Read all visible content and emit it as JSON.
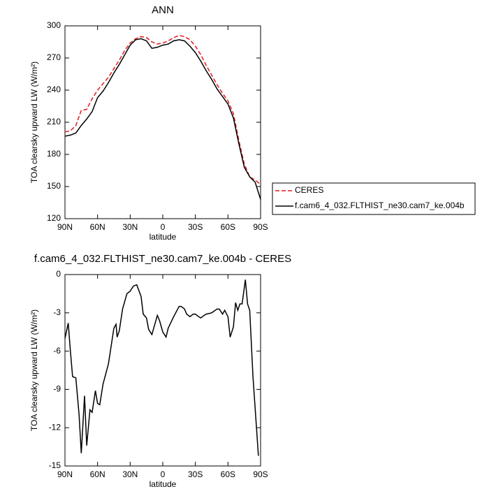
{
  "chart_data": [
    {
      "type": "line",
      "title": "ANN",
      "xlabel": "latitude",
      "ylabel": "TOA clearsky upward LW (W/m²)",
      "x": [
        90,
        85,
        80,
        75,
        70,
        65,
        60,
        55,
        50,
        45,
        40,
        35,
        30,
        25,
        20,
        15,
        10,
        5,
        0,
        -5,
        -10,
        -15,
        -20,
        -25,
        -30,
        -35,
        -40,
        -45,
        -50,
        -55,
        -60,
        -65,
        -70,
        -75,
        -80,
        -85,
        -90
      ],
      "series": [
        {
          "name": "CERES",
          "color": "#e41a1c",
          "line_style": "dashed",
          "values": [
            201,
            202,
            207,
            221,
            222,
            232,
            240,
            246,
            252,
            260,
            268,
            277,
            284,
            288,
            290,
            289,
            285,
            283,
            284,
            286,
            289,
            291,
            290,
            287,
            281,
            273,
            263,
            254,
            245,
            237,
            230,
            218,
            193,
            171,
            159,
            156,
            152
          ]
        },
        {
          "name": "f.cam6_4_032.FLTHIST_ne30.cam7_ke.004b",
          "color": "#000000",
          "line_style": "solid",
          "values": [
            197,
            198,
            200,
            207,
            213,
            220,
            233,
            239,
            247,
            256,
            264,
            273,
            282,
            287,
            288,
            286,
            279,
            280,
            282,
            283,
            286,
            287,
            286,
            281,
            275,
            267,
            258,
            250,
            241,
            234,
            227,
            214,
            190,
            168,
            159,
            154,
            138
          ]
        }
      ],
      "xlim": [
        90,
        -90
      ],
      "xticks": [
        {
          "value": 90,
          "label": "90N"
        },
        {
          "value": 60,
          "label": "60N"
        },
        {
          "value": 30,
          "label": "30N"
        },
        0,
        {
          "value": -30,
          "label": "30S"
        },
        {
          "value": -60,
          "label": "60S"
        },
        {
          "value": -90,
          "label": "90S"
        }
      ],
      "ylim": [
        120,
        300
      ],
      "yticks": [
        120,
        150,
        180,
        210,
        240,
        270,
        300
      ],
      "legend": "right"
    },
    {
      "type": "line",
      "title": "f.cam6_4_032.FLTHIST_ne30.cam7_ke.004b - CERES",
      "xlabel": "latitude",
      "ylabel": "TOA clearsky upward LW (W/m²)",
      "x": [
        90,
        87,
        85,
        83,
        80,
        77,
        75,
        72,
        70,
        67,
        65,
        62,
        60,
        58,
        55,
        50,
        45,
        43,
        42,
        40,
        37,
        33,
        30,
        27,
        24,
        20,
        18,
        15,
        13,
        10,
        7,
        5,
        3,
        0,
        -3,
        -5,
        -10,
        -15,
        -17,
        -20,
        -22,
        -25,
        -28,
        -30,
        -33,
        -35,
        -38,
        -40,
        -45,
        -50,
        -52,
        -55,
        -57,
        -60,
        -62,
        -65,
        -67,
        -69,
        -71,
        -73,
        -76,
        -78,
        -80,
        -83,
        -88
      ],
      "color": "#000000",
      "values": [
        -5.0,
        -3.8,
        -6,
        -8,
        -8.1,
        -11,
        -14,
        -9.5,
        -13.4,
        -10.6,
        -10.8,
        -9.1,
        -10.1,
        -10.2,
        -8.6,
        -7,
        -4.2,
        -3.9,
        -4.9,
        -4.4,
        -2.7,
        -1.5,
        -1.3,
        -0.9,
        -0.8,
        -1.7,
        -3.1,
        -3.4,
        -4.3,
        -4.7,
        -3.8,
        -3.2,
        -3.6,
        -4.5,
        -4.9,
        -4.2,
        -3.3,
        -2.5,
        -2.5,
        -2.7,
        -3.1,
        -3.3,
        -3.1,
        -3.1,
        -3.3,
        -3.4,
        -3.2,
        -3.1,
        -3.0,
        -2.7,
        -2.7,
        -3.1,
        -2.8,
        -3.3,
        -4.9,
        -4.1,
        -2.2,
        -2.8,
        -2.3,
        -2.3,
        -0.4,
        -2.3,
        -2.8,
        -8,
        -14.2
      ],
      "xlim": [
        90,
        -90
      ],
      "xticks": [
        {
          "value": 90,
          "label": "90N"
        },
        {
          "value": 60,
          "label": "60N"
        },
        {
          "value": 30,
          "label": "30N"
        },
        0,
        {
          "value": -30,
          "label": "30S"
        },
        {
          "value": -60,
          "label": "60S"
        },
        {
          "value": -90,
          "label": "90S"
        }
      ],
      "ylim": [
        -15,
        0
      ],
      "yticks": [
        -15,
        -12,
        -9,
        -6,
        -3,
        0
      ]
    }
  ]
}
